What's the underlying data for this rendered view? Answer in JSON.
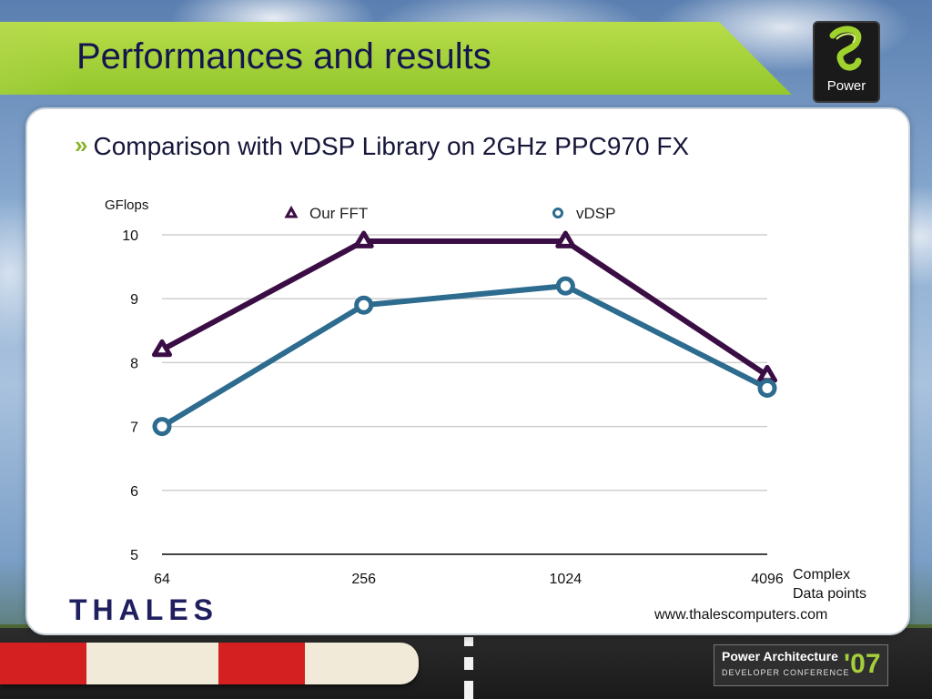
{
  "slide": {
    "title": "Performances and results",
    "bullet": "Comparison with vDSP Library on 2GHz PPC970 FX",
    "bullet_marker": "»",
    "x_axis_unit": [
      "Complex",
      "Data points"
    ],
    "company_logo_text": "THALES",
    "url": "www.thalescomputers.com",
    "power_logo_label": "Power",
    "conference": {
      "line1": "Power Architecture",
      "line2": "DEVELOPER CONFERENCE",
      "year": "'07"
    }
  },
  "colors": {
    "banner_green": "#a3d03a",
    "title_navy": "#15154f",
    "our_fft": "#3b0d45",
    "vdsp": "#2d6b8f",
    "thales_blue": "#202060"
  },
  "chart_data": {
    "type": "line",
    "categories": [
      "64",
      "256",
      "1024",
      "4096"
    ],
    "ylabel": "GFlops",
    "xlabel": "",
    "ylim": [
      5,
      10
    ],
    "yticks": [
      5,
      6,
      7,
      8,
      9,
      10
    ],
    "grid": true,
    "legend": "top",
    "series": [
      {
        "name": "Our FFT",
        "marker": "triangle",
        "values": [
          8.2,
          9.9,
          9.9,
          7.8
        ]
      },
      {
        "name": "vDSP",
        "marker": "circle",
        "values": [
          7.0,
          8.9,
          9.2,
          7.6
        ]
      }
    ]
  }
}
